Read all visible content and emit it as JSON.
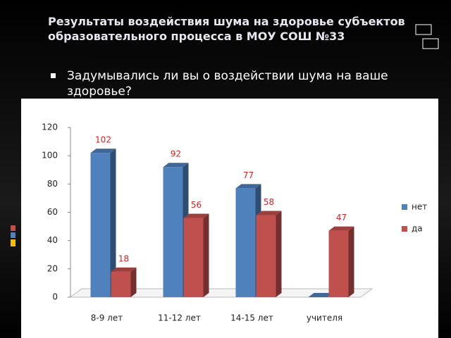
{
  "title": "Результаты воздействия шума на здоровье субъектов образовательного процесса в МОУ СОШ №33",
  "bullet": "Задумывались ли вы  о воздействии шума на ваше здоровье?",
  "chart_data": {
    "type": "bar3d",
    "categories": [
      "8-9 лет",
      "11-12 лет",
      "14-15 лет",
      "учителя"
    ],
    "series": [
      {
        "name": "нет",
        "color": "#4f81bd",
        "values": [
          102,
          92,
          77,
          0
        ],
        "value_labels": [
          "102",
          "92",
          "77",
          null
        ]
      },
      {
        "name": "да",
        "color": "#c0504d",
        "values": [
          18,
          56,
          58,
          47
        ],
        "value_labels": [
          "18",
          "56",
          "58",
          "47"
        ]
      }
    ],
    "ylim": [
      0,
      120
    ],
    "yticks": [
      0,
      20,
      40,
      60,
      80,
      100,
      120
    ],
    "legend": "right"
  }
}
